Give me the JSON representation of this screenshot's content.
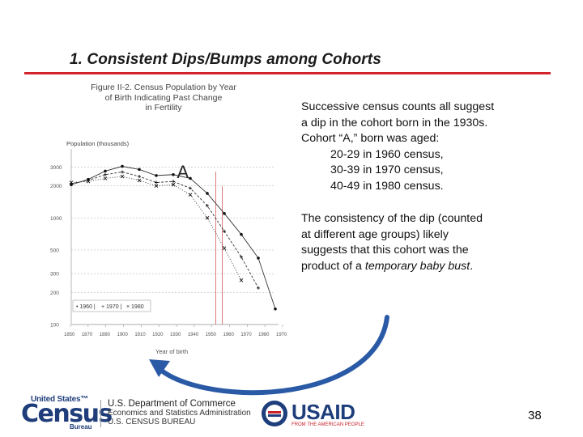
{
  "slide": {
    "title": "1.  Consistent Dips/Bumps among Cohorts",
    "page_number": "38"
  },
  "side_text": {
    "line1": "Successive census counts  all suggest",
    "line2": "a dip in the cohort born in the 1930s.",
    "line3": "Cohort “A,” born was aged:",
    "age1": "20-29 in 1960 census,",
    "age2": "30-39 in 1970 census,",
    "age3": "40-49 in 1980 census.",
    "p2_line1": "The consistency of the dip (counted",
    "p2_line2": "at different age groups) likely",
    "p2_line3": "suggests that this cohort was the",
    "p2_line4_pre": "product of a ",
    "p2_line4_em": "temporary baby bust",
    "p2_line4_post": "."
  },
  "footer": {
    "census_top": "United States™",
    "census_big": "Census",
    "census_bureau": "Bureau",
    "doc_line1": "U.S. Department of Commerce",
    "doc_line2": "Economics and Statistics Administration",
    "doc_line3": "U.S. CENSUS BUREAU",
    "usaid": "USAID",
    "usaid_sub": "FROM THE AMERICAN PEOPLE"
  },
  "colors": {
    "title_rule": "#d3242d",
    "arrow": "#2a5aa6",
    "census_blue": "#1f3d7a",
    "usaid_red": "#c72027"
  },
  "chart_data": {
    "type": "line",
    "title_line1": "Figure II-2.  Census Population by Year",
    "title_line2": "of Birth Indicating Past Change",
    "title_line3": "in Fertility",
    "ylabel": "Population (thousands)",
    "xlabel": "Year of birth",
    "y_scale": "log",
    "ylim": [
      100,
      4000
    ],
    "y_ticks": [
      100,
      200,
      300,
      500,
      1000,
      2000,
      3000
    ],
    "xlim": [
      1850,
      1970
    ],
    "x_ticks": [
      "1850",
      "1870",
      "1880",
      "1900",
      "1910",
      "1920",
      "1930",
      "1940",
      "1950",
      "1960",
      "1970",
      "1980",
      "1970"
    ],
    "annotation": "A",
    "annotation_year": 1935,
    "legend": [
      "1960",
      "1970",
      "1980"
    ],
    "x": [
      1850,
      1860,
      1870,
      1880,
      1890,
      1900,
      1910,
      1920,
      1930,
      1940,
      1950,
      1960,
      1970
    ],
    "series": [
      {
        "name": "1960",
        "marker": "dot",
        "values": [
          2050,
          2300,
          2750,
          3050,
          2850,
          2500,
          2550,
          2350,
          1700,
          1100,
          700,
          420,
          140
        ]
      },
      {
        "name": "1970",
        "marker": "cross",
        "values": [
          2100,
          2250,
          2550,
          2700,
          2450,
          2150,
          2200,
          1900,
          1300,
          750,
          430,
          220,
          null
        ]
      },
      {
        "name": "1980",
        "marker": "star",
        "values": [
          2150,
          2200,
          2350,
          2450,
          2250,
          2000,
          2050,
          1650,
          1000,
          520,
          260,
          null,
          null
        ]
      }
    ]
  }
}
